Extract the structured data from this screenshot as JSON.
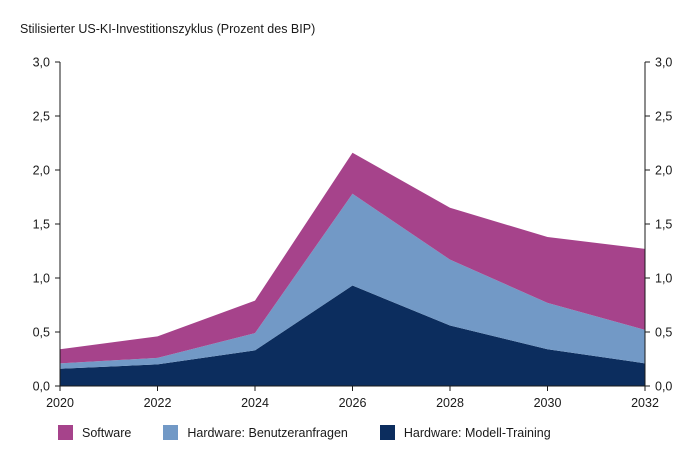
{
  "chart_data": {
    "type": "area",
    "stacked": true,
    "title": "Stilisierter US-KI-Investitionszyklus (Prozent des BIP)",
    "x": [
      2020,
      2022,
      2024,
      2026,
      2028,
      2030,
      2032
    ],
    "xlim": [
      2020,
      2032
    ],
    "ylim": [
      0,
      3.0
    ],
    "y_ticks": [
      "0,0",
      "0,5",
      "1,0",
      "1,5",
      "2,0",
      "2,5",
      "3,0"
    ],
    "x_ticks": [
      "2020",
      "2022",
      "2024",
      "2026",
      "2028",
      "2030",
      "2032"
    ],
    "grid": false,
    "legend_position": "bottom",
    "series": [
      {
        "name": "Hardware: Modell-Training",
        "color": "#0c2d5e",
        "values": [
          0.16,
          0.2,
          0.33,
          0.93,
          0.56,
          0.34,
          0.21
        ]
      },
      {
        "name": "Hardware: Benutzeranfragen",
        "color": "#7299c6",
        "values": [
          0.05,
          0.06,
          0.16,
          0.85,
          0.61,
          0.43,
          0.31
        ]
      },
      {
        "name": "Software",
        "color": "#a6438b",
        "values": [
          0.13,
          0.2,
          0.3,
          0.38,
          0.48,
          0.61,
          0.75
        ]
      }
    ],
    "legend_order": [
      "Software",
      "Hardware: Benutzeranfragen",
      "Hardware: Modell-Training"
    ]
  }
}
